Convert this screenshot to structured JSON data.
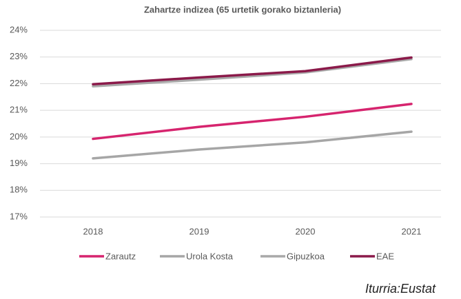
{
  "chart_data": {
    "type": "line",
    "title": "Zahartze indizea (65 urtetik gorako biztanleria)",
    "categories": [
      "2018",
      "2019",
      "2020",
      "2021"
    ],
    "series": [
      {
        "name": "Zarautz",
        "color": "#d6246e",
        "values": [
          19.93,
          20.38,
          20.76,
          21.24
        ]
      },
      {
        "name": "Urola Kosta",
        "color": "#a6a6a6",
        "values": [
          19.2,
          19.53,
          19.8,
          20.2
        ]
      },
      {
        "name": "Gipuzkoa",
        "color": "#a9a9a9",
        "values": [
          21.9,
          22.15,
          22.42,
          22.92
        ]
      },
      {
        "name": "EAE",
        "color": "#8b1a4a",
        "values": [
          21.98,
          22.23,
          22.47,
          22.98
        ]
      }
    ],
    "ylim": [
      17,
      24
    ],
    "yticks": [
      {
        "value": 17,
        "label": "17%"
      },
      {
        "value": 18,
        "label": "18%"
      },
      {
        "value": 19,
        "label": "19%"
      },
      {
        "value": 20,
        "label": "20%"
      },
      {
        "value": 21,
        "label": "21%"
      },
      {
        "value": 22,
        "label": "22%"
      },
      {
        "value": 23,
        "label": "23%"
      },
      {
        "value": 24,
        "label": "24%"
      }
    ],
    "grid": true,
    "legend": "bottom",
    "annotation": "Iturria:Eustat"
  }
}
